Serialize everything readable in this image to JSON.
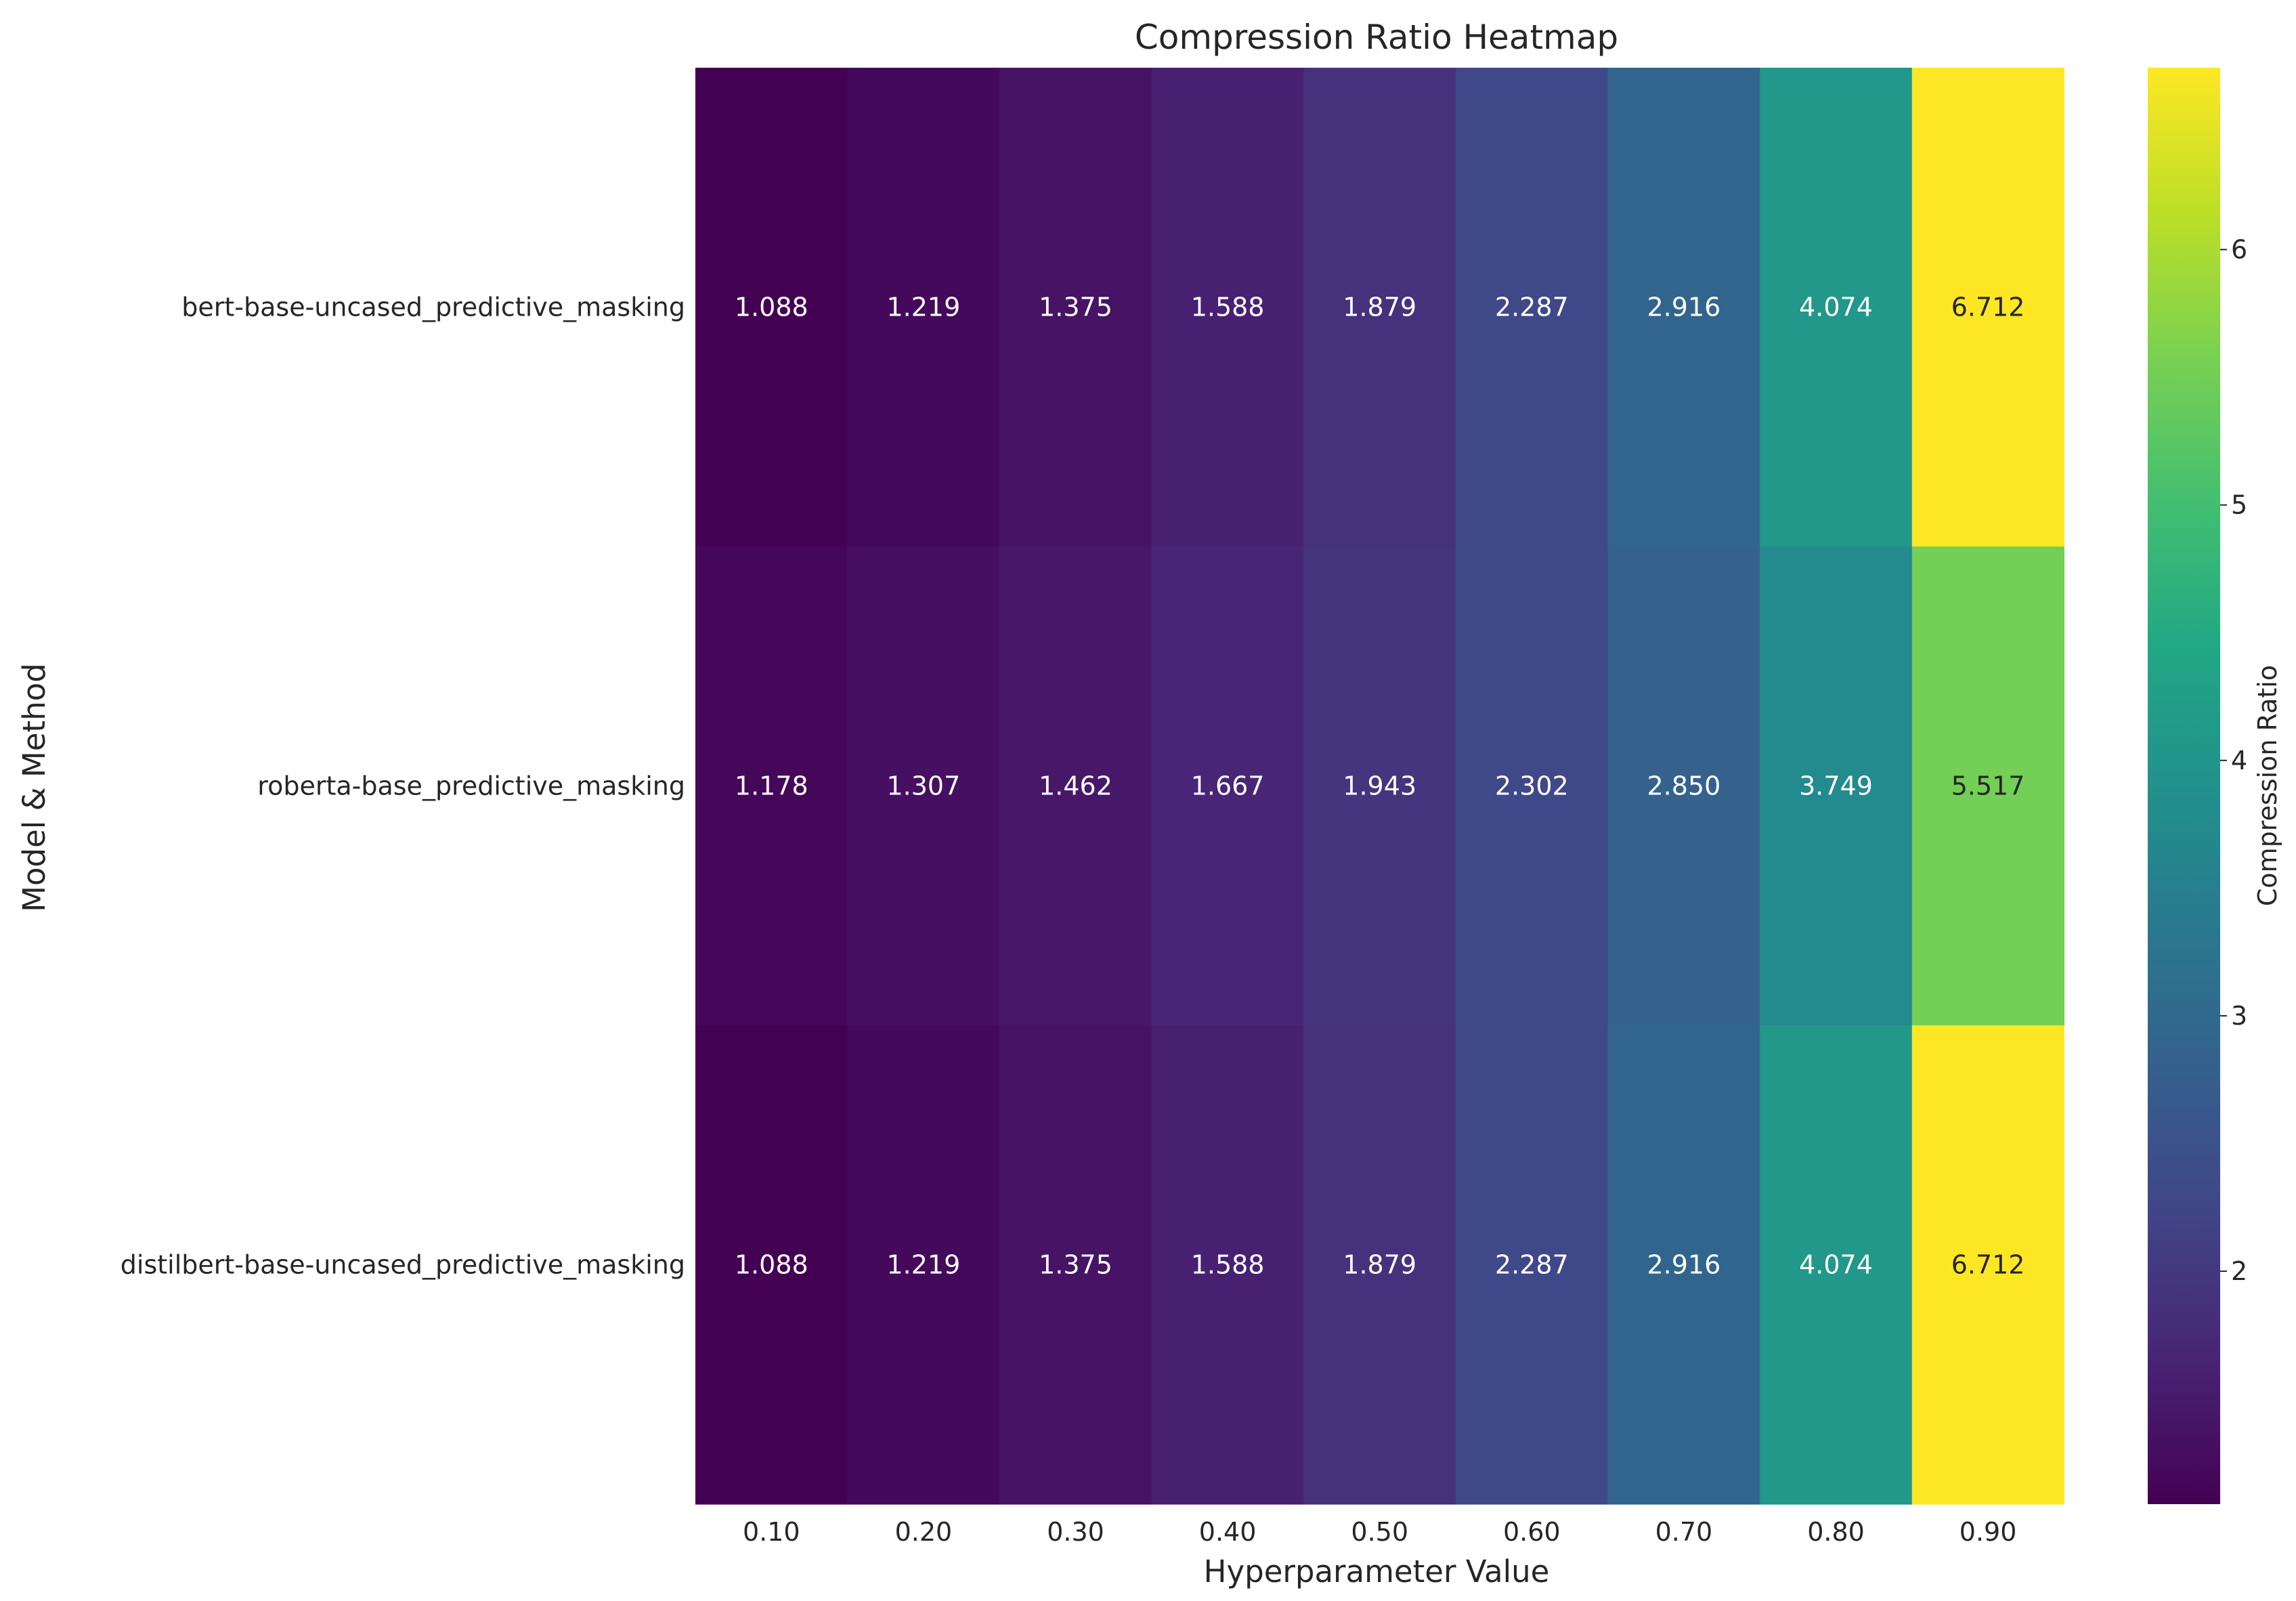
{
  "chart_data": {
    "type": "heatmap",
    "title": "Compression Ratio Heatmap",
    "xlabel": "Hyperparameter Value",
    "ylabel": "Model & Method",
    "x": [
      "0.10",
      "0.20",
      "0.30",
      "0.40",
      "0.50",
      "0.60",
      "0.70",
      "0.80",
      "0.90"
    ],
    "y": [
      "bert-base-uncased_predictive_masking",
      "roberta-base_predictive_masking",
      "distilbert-base-uncased_predictive_masking"
    ],
    "values": [
      [
        1.088,
        1.219,
        1.375,
        1.588,
        1.879,
        2.287,
        2.916,
        4.074,
        6.712
      ],
      [
        1.178,
        1.307,
        1.462,
        1.667,
        1.943,
        2.302,
        2.85,
        3.749,
        5.517
      ],
      [
        1.088,
        1.219,
        1.375,
        1.588,
        1.879,
        2.287,
        2.916,
        4.074,
        6.712
      ]
    ],
    "value_labels": [
      [
        "1.088",
        "1.219",
        "1.375",
        "1.588",
        "1.879",
        "2.287",
        "2.916",
        "4.074",
        "6.712"
      ],
      [
        "1.178",
        "1.307",
        "1.462",
        "1.667",
        "1.943",
        "2.302",
        "2.850",
        "3.749",
        "5.517"
      ],
      [
        "1.088",
        "1.219",
        "1.375",
        "1.588",
        "1.879",
        "2.287",
        "2.916",
        "4.074",
        "6.712"
      ]
    ],
    "colormap": "viridis",
    "colorbar": {
      "label": "Compression Ratio",
      "range": [
        1.088,
        6.712
      ],
      "ticks": [
        2,
        3,
        4,
        5,
        6
      ],
      "tick_labels": [
        "2",
        "3",
        "4",
        "5",
        "6"
      ]
    },
    "grid": false
  }
}
